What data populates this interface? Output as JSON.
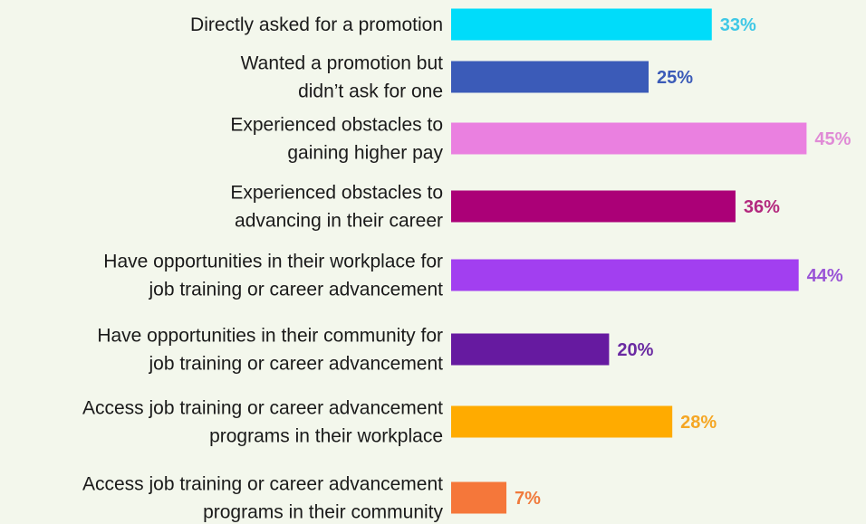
{
  "chart_data": {
    "type": "bar",
    "orientation": "horizontal",
    "categories": [
      [
        "Directly asked for a promotion"
      ],
      [
        "Wanted a promotion but",
        "didn’t ask for one"
      ],
      [
        "Experienced obstacles to",
        "gaining higher pay"
      ],
      [
        "Experienced obstacles to",
        "advancing in their career"
      ],
      [
        "Have opportunities in their workplace for",
        "job training or career advancement"
      ],
      [
        "Have opportunities in their community for",
        "job training or career advancement"
      ],
      [
        "Access job training or career advancement",
        "programs in their workplace"
      ],
      [
        "Access job training or career advancement",
        "programs in their community"
      ]
    ],
    "values": [
      33,
      25,
      45,
      36,
      44,
      20,
      28,
      7
    ],
    "value_labels": [
      "33%",
      "25%",
      "45%",
      "36%",
      "44%",
      "20%",
      "28%",
      "7%"
    ],
    "bar_colors": [
      "#00dcfa",
      "#3b5bb8",
      "#ea80e0",
      "#ab0077",
      "#a23ff0",
      "#661aa0",
      "#ffab00",
      "#f5773a"
    ],
    "label_colors": [
      "#3fc8e6",
      "#3b5bb8",
      "#e08bd6",
      "#b3297e",
      "#9a55d6",
      "#6a2aa2",
      "#f5a623",
      "#f07a3c"
    ],
    "unit": "%",
    "title": "",
    "xlabel": "",
    "ylabel": "",
    "grid": false,
    "legend": "none"
  }
}
